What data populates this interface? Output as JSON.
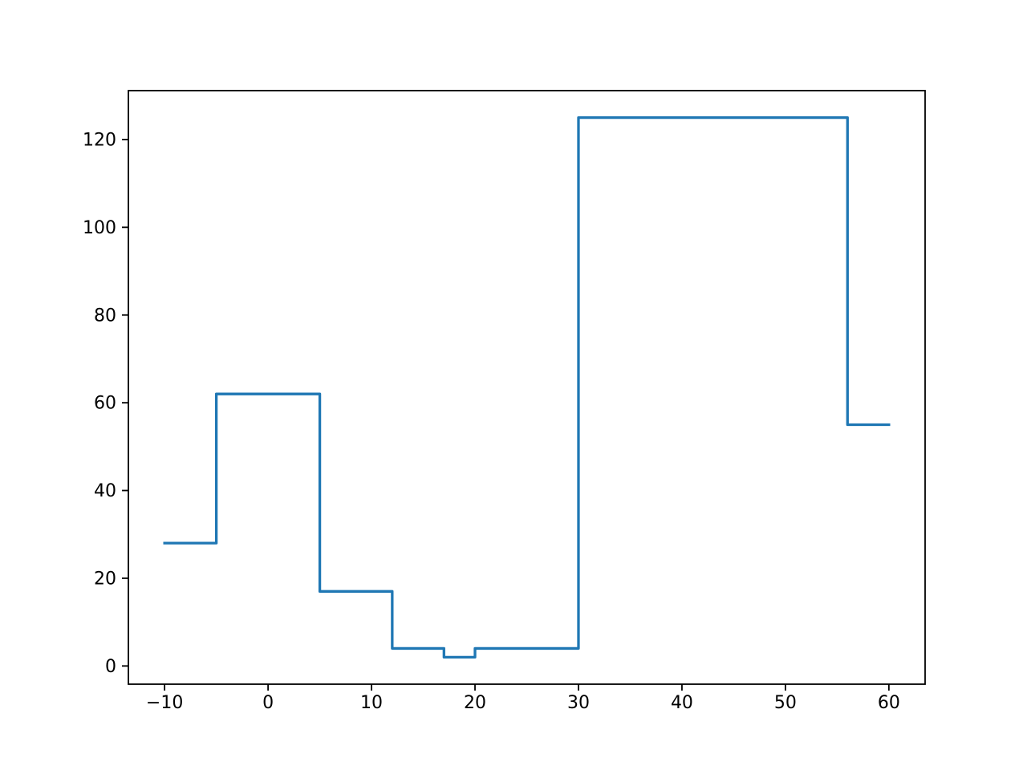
{
  "figure": {
    "background": "#ffffff",
    "axes_background": "#ffffff",
    "spine_color": "#000000",
    "tick_color": "#000000",
    "tick_label_color": "#000000"
  },
  "chart_data": {
    "type": "line",
    "style": "step",
    "title": "",
    "xlabel": "",
    "ylabel": "",
    "grid": false,
    "legend": false,
    "line_color": "#1f77b4",
    "xlim": [
      -13.5,
      63.5
    ],
    "ylim": [
      -4.15,
      131.15
    ],
    "x_ticks": [
      -10,
      0,
      10,
      20,
      30,
      40,
      50,
      60
    ],
    "x_tick_labels": [
      "−10",
      "0",
      "10",
      "20",
      "30",
      "40",
      "50",
      "60"
    ],
    "y_ticks": [
      0,
      20,
      40,
      60,
      80,
      100,
      120
    ],
    "y_tick_labels": [
      "0",
      "20",
      "40",
      "60",
      "80",
      "100",
      "120"
    ],
    "bin_edges": [
      -10,
      -5,
      5,
      12,
      17,
      20,
      30,
      56,
      60
    ],
    "bin_values": [
      28,
      62,
      17,
      4,
      2,
      4,
      125,
      55
    ],
    "points": [
      [
        -10,
        28
      ],
      [
        -5,
        28
      ],
      [
        -5,
        62
      ],
      [
        5,
        62
      ],
      [
        5,
        17
      ],
      [
        12,
        17
      ],
      [
        12,
        4
      ],
      [
        17,
        4
      ],
      [
        17,
        2
      ],
      [
        20,
        2
      ],
      [
        20,
        4
      ],
      [
        30,
        4
      ],
      [
        30,
        125
      ],
      [
        56,
        125
      ],
      [
        56,
        55
      ],
      [
        60,
        55
      ]
    ]
  }
}
